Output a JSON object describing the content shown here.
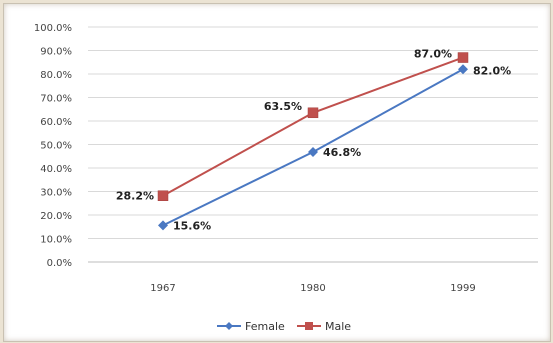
{
  "chart_data": {
    "type": "line",
    "categories": [
      "1967",
      "1980",
      "1999"
    ],
    "ylim": [
      0,
      100
    ],
    "y_ticks": [
      "0.0%",
      "10.0%",
      "20.0%",
      "30.0%",
      "40.0%",
      "50.0%",
      "60.0%",
      "70.0%",
      "80.0%",
      "90.0%",
      "100.0%"
    ],
    "grid": true,
    "legend_position": "bottom",
    "series": [
      {
        "name": "Female",
        "values": [
          15.6,
          46.8,
          82.0
        ],
        "labels": [
          "15.6%",
          "46.8%",
          "82.0%"
        ],
        "color": "#4a78c2",
        "marker": "diamond"
      },
      {
        "name": "Male",
        "values": [
          28.2,
          63.5,
          87.0
        ],
        "labels": [
          "28.2%",
          "63.5%",
          "87.0%"
        ],
        "color": "#c0504d",
        "marker": "square"
      }
    ]
  }
}
